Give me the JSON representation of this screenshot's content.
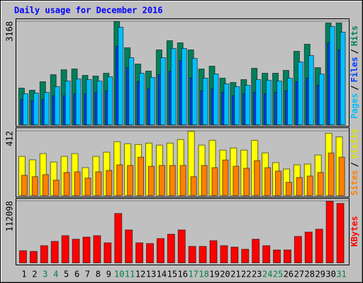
{
  "chart_data": [
    {
      "type": "bar",
      "title": "Daily usage for December 2016",
      "separator": "/",
      "ylim": [
        0,
        3168
      ],
      "yticks": [
        3168
      ],
      "series": [
        {
          "name": "Hits",
          "color": "#00805c",
          "values": [
            1128,
            1063,
            1324,
            1540,
            1692,
            1714,
            1519,
            1497,
            1584,
            3168,
            2365,
            1866,
            1649,
            2300,
            2582,
            2517,
            2300,
            1714,
            1800,
            1432,
            1302,
            1389,
            1736,
            1584,
            1584,
            1671,
            2257,
            2474,
            1757,
            3125,
            3125
          ]
        },
        {
          "name": "Files",
          "color": "#0040ff",
          "values": [
            782,
            738,
            782,
            890,
            890,
            955,
            955,
            998,
            1042,
            2408,
            1757,
            1324,
            1107,
            1540,
            1649,
            1975,
            1432,
            1042,
            1107,
            998,
            890,
            955,
            998,
            955,
            998,
            1042,
            1324,
            1432,
            1215,
            2517,
            2300
          ]
        },
        {
          "name": "Pages",
          "color": "#00c0ff",
          "values": [
            955,
            976,
            998,
            1172,
            1345,
            1410,
            1389,
            1345,
            1475,
            2995,
            2061,
            1584,
            1454,
            2061,
            2343,
            2343,
            2040,
            1432,
            1562,
            1259,
            1172,
            1215,
            1389,
            1367,
            1345,
            1432,
            1931,
            2127,
            1562,
            3017,
            2843
          ]
        }
      ]
    },
    {
      "type": "bar",
      "separator": "/",
      "ylim": [
        0,
        412
      ],
      "yticks": [
        412
      ],
      "series": [
        {
          "name": "Visits",
          "color": "#ffff00",
          "values": [
            251,
            229,
            269,
            215,
            251,
            269,
            179,
            251,
            278,
            345,
            332,
            327,
            336,
            323,
            336,
            359,
            412,
            323,
            354,
            291,
            305,
            291,
            354,
            273,
            211,
            170,
            197,
            202,
            260,
            399,
            376
          ]
        },
        {
          "name": "Sites",
          "color": "#ff8000",
          "values": [
            130,
            121,
            134,
            99,
            148,
            152,
            112,
            152,
            161,
            197,
            193,
            246,
            188,
            193,
            193,
            193,
            121,
            193,
            179,
            228,
            188,
            175,
            224,
            179,
            157,
            85,
            116,
            125,
            148,
            273,
            246
          ]
        }
      ]
    },
    {
      "type": "bar",
      "ylim": [
        0,
        112098
      ],
      "yticks": [
        112098
      ],
      "categories": [
        "1",
        "2",
        "3",
        "4",
        "5",
        "6",
        "7",
        "8",
        "9",
        "10",
        "11",
        "12",
        "13",
        "14",
        "15",
        "16",
        "17",
        "18",
        "19",
        "20",
        "21",
        "22",
        "23",
        "24",
        "25",
        "26",
        "27",
        "28",
        "29",
        "30",
        "31"
      ],
      "category_colors": [
        "#000000",
        "#000000",
        "#008040",
        "#008040",
        "#000000",
        "#000000",
        "#000000",
        "#000000",
        "#000000",
        "#008040",
        "#008040",
        "#000000",
        "#000000",
        "#000000",
        "#000000",
        "#000000",
        "#008040",
        "#008040",
        "#000000",
        "#000000",
        "#000000",
        "#000000",
        "#000000",
        "#008040",
        "#008040",
        "#000000",
        "#000000",
        "#000000",
        "#000000",
        "#000000",
        "#008040"
      ],
      "series": [
        {
          "name": "KBytes",
          "color": "#ff0000",
          "values": [
            22150,
            20850,
            31270,
            39090,
            49510,
            43000,
            46900,
            49510,
            36480,
            89900,
            59940,
            36480,
            35180,
            44300,
            52120,
            59940,
            29970,
            29970,
            40390,
            31270,
            28670,
            24760,
            43000,
            31270,
            23450,
            23450,
            48210,
            56030,
            61240,
            112098,
            108190
          ]
        }
      ]
    }
  ]
}
